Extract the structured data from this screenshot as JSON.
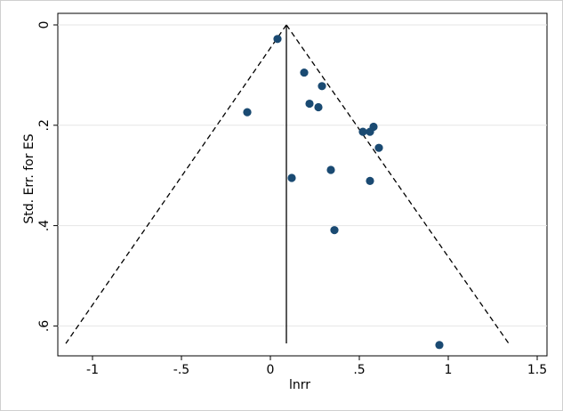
{
  "chart_data": {
    "type": "scatter",
    "subtype": "funnel-plot",
    "title": "",
    "xlabel": "lnrr",
    "ylabel": "Std. Err. for ES",
    "xlim": [
      -1.2,
      1.5
    ],
    "ylim": [
      0,
      0.64
    ],
    "y_reversed": true,
    "x_ticks": [
      -1,
      -0.5,
      0,
      0.5,
      1,
      1.5
    ],
    "x_tick_labels": [
      "-1",
      "-.5",
      "0",
      ".5",
      "1",
      "1.5"
    ],
    "y_ticks": [
      0,
      0.2,
      0.4,
      0.6
    ],
    "y_tick_labels": [
      "0",
      ".2",
      ".4",
      ".6"
    ],
    "grid": "horizontal",
    "pooled_effect": 0.09,
    "funnel_limits": {
      "apex": [
        0.09,
        0
      ],
      "left_base": [
        -1.15,
        0.635
      ],
      "right_base": [
        1.34,
        0.635
      ]
    },
    "series": [
      {
        "points": [
          {
            "x": 0.04,
            "y": 0.028
          },
          {
            "x": 0.19,
            "y": 0.095
          },
          {
            "x": 0.29,
            "y": 0.122
          },
          {
            "x": 0.22,
            "y": 0.157
          },
          {
            "x": 0.27,
            "y": 0.164
          },
          {
            "x": -0.13,
            "y": 0.174
          },
          {
            "x": 0.58,
            "y": 0.203
          },
          {
            "x": 0.52,
            "y": 0.213
          },
          {
            "x": 0.56,
            "y": 0.213
          },
          {
            "x": 0.61,
            "y": 0.245
          },
          {
            "x": 0.34,
            "y": 0.289
          },
          {
            "x": 0.12,
            "y": 0.305
          },
          {
            "x": 0.56,
            "y": 0.311
          },
          {
            "x": 0.36,
            "y": 0.409
          },
          {
            "x": 0.95,
            "y": 0.638
          }
        ],
        "color": "#1a4a72"
      }
    ]
  }
}
